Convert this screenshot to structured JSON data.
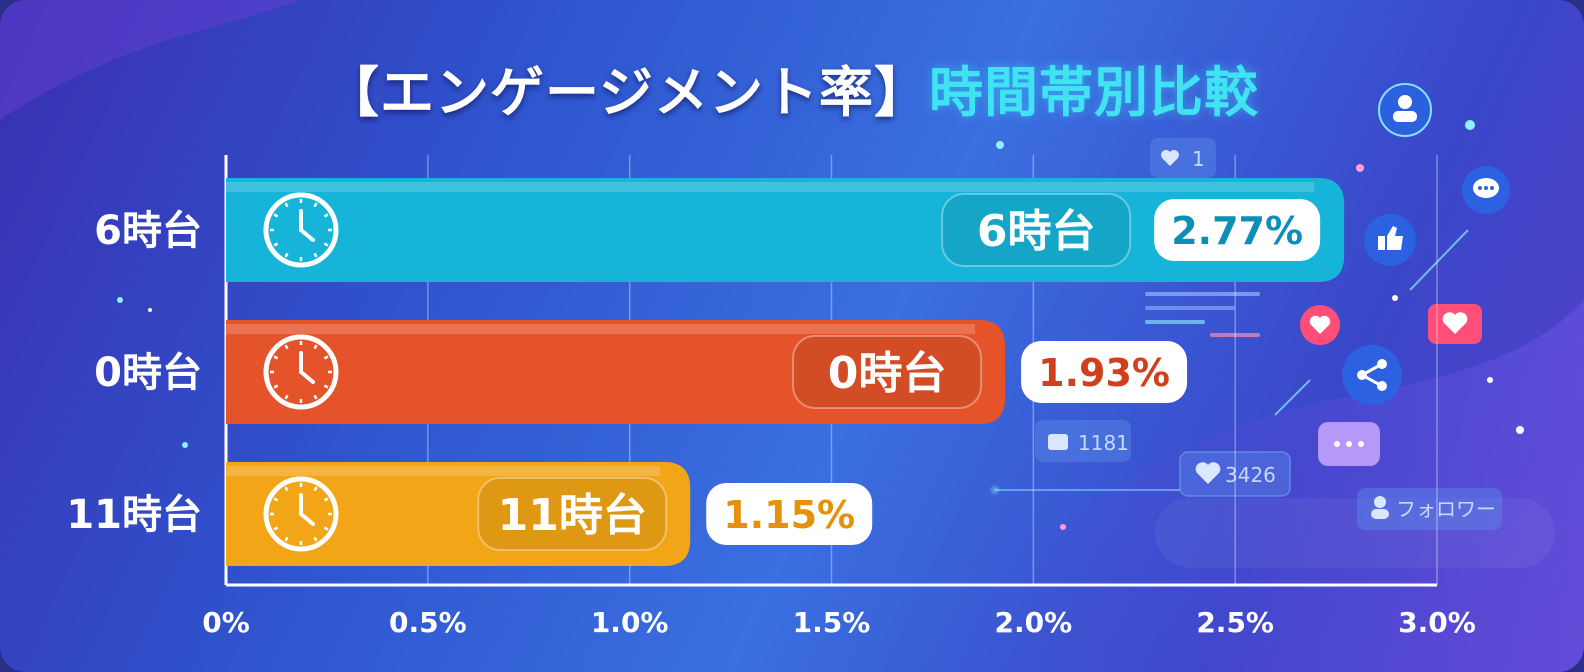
{
  "title": {
    "part1": "【エンゲージメント率】",
    "part2": "時間帯別比較"
  },
  "chart_data": {
    "type": "bar",
    "orientation": "horizontal",
    "categories": [
      "6時台",
      "0時台",
      "11時台"
    ],
    "values": [
      2.77,
      1.93,
      1.15
    ],
    "value_labels": [
      "2.77%",
      "1.93%",
      "1.15%"
    ],
    "xlim": [
      0,
      3.0
    ],
    "xticks": [
      0,
      0.5,
      1.0,
      1.5,
      2.0,
      2.5,
      3.0
    ],
    "xtick_labels": [
      "0%",
      "0.5%",
      "1.0%",
      "1.5%",
      "2.0%",
      "2.5%",
      "3.0%"
    ],
    "grid": true,
    "colors": [
      "#16b4d8",
      "#e4532a",
      "#f2a516"
    ],
    "value_colors": [
      "#0d8fb5",
      "#d0401e",
      "#e6900b"
    ]
  },
  "decorations": {
    "badges": [
      "1",
      "1181",
      "3426",
      "フォロワー"
    ],
    "icons": [
      "user-icon",
      "chat-icon",
      "thumbs-up-icon",
      "heart-icon",
      "share-icon",
      "clock-icon"
    ]
  }
}
